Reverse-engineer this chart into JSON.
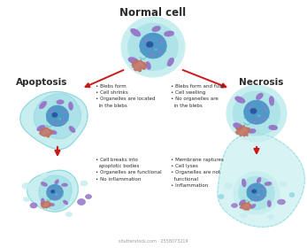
{
  "title": "Normal cell",
  "label_apoptosis": "Apoptosis",
  "label_necrosis": "Necrosis",
  "bg_color": "#ffffff",
  "cell_light": "#c8eef0",
  "cell_mid": "#90d8e0",
  "cell_inner": "#68c0d0",
  "cell_nucleus": "#5098c8",
  "cell_nucleus_dark": "#3878b0",
  "cell_nucleolus": "#2858a0",
  "organelle_purple": "#9878c8",
  "organelle_purple2": "#b898d8",
  "organelle_red": "#c07060",
  "organelle_red2": "#d08878",
  "arrow_color": "#cc1818",
  "text_color": "#2a2a2a",
  "apoptosis_mid_text": "• Blebs form\n• Cell shrinks\n• Organelles are located\n  in the blebs",
  "necrosis_mid_text": "• Blebs form and fuse\n• Cell swelling\n• No organelles are\n  in the blebs",
  "apoptosis_bottom_text": "• Cell breaks into\n  apoptotic bodies\n• Organelles are functional\n• No inflammation",
  "necrosis_bottom_text": "• Membrane raptures\n• Cell lyses\n• Organelles are not\n  functional\n• Inflammation",
  "shutterstock_text": "shutterstock.com · 2558073219"
}
